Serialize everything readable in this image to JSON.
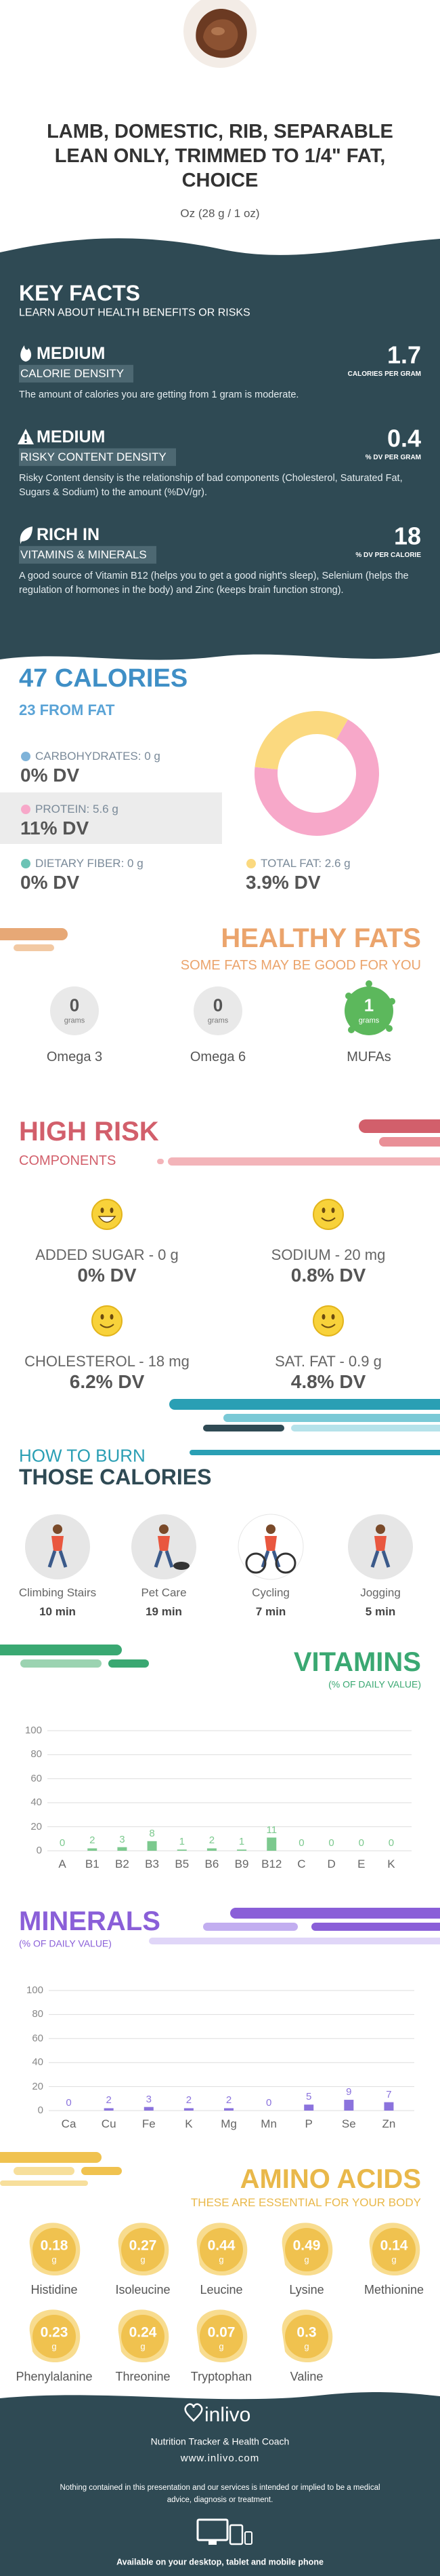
{
  "header": {
    "title": "LAMB, DOMESTIC, RIB, SEPARABLE LEAN ONLY, TRIMMED TO 1/4\" FAT, CHOICE",
    "serving": "Oz (28 g / 1 oz)"
  },
  "key_facts": {
    "title": "KEY FACTS",
    "subtitle": "LEARN ABOUT HEALTH BENEFITS OR RISKS",
    "items": [
      {
        "level": "MEDIUM",
        "name": "CALORIE DENSITY",
        "value": "1.7",
        "unit": "CALORIES PER GRAM",
        "text": "The amount of calories you are getting from 1 gram is moderate."
      },
      {
        "level": "MEDIUM",
        "name": "RISKY CONTENT DENSITY",
        "value": "0.4",
        "unit": "% DV PER GRAM",
        "text": "Risky Content density is the relationship of bad components (Cholesterol, Saturated Fat, Sugars & Sodium) to the amount (%DV/gr)."
      },
      {
        "level": "RICH  IN",
        "name": "VITAMINS & MINERALS",
        "value": "18",
        "unit": "% DV PER CALORIE",
        "text": "A good source of Vitamin B12 (helps you to get a good night's sleep), Selenium (helps the regulation of hormones in the body) and Zinc (keeps brain function strong)."
      }
    ]
  },
  "calories": {
    "title": "47 CALORIES",
    "subtitle": "23 FROM FAT",
    "nutrients": [
      {
        "label": "CARBOHYDRATES: 0 g",
        "value": 0,
        "dv": "0% DV",
        "color": "#7fb3d9"
      },
      {
        "label": "PROTEIN: 5.6 g",
        "value": 5.6,
        "dv": "11% DV",
        "color": "#f7a8c9"
      },
      {
        "label": "DIETARY FIBER: 0 g",
        "value": 0,
        "dv": "0% DV",
        "color": "#6cc3b5"
      },
      {
        "label": "TOTAL FAT: 2.6 g",
        "value": 2.6,
        "dv": "3.9% DV",
        "color": "#fbd97f"
      }
    ]
  },
  "healthy_fats": {
    "title": "HEALTHY FATS",
    "subtitle": "SOME FATS MAY BE GOOD FOR YOU",
    "items": [
      {
        "amount": "0",
        "unit": "grams",
        "name": "Omega 3"
      },
      {
        "amount": "0",
        "unit": "grams",
        "name": "Omega 6"
      },
      {
        "amount": "1",
        "unit": "grams",
        "name": "MUFAs"
      }
    ]
  },
  "high_risk": {
    "title": "HIGH RISK",
    "subtitle": "COMPONENTS",
    "items": [
      {
        "label": "ADDED SUGAR - 0 g",
        "dv": "0% DV"
      },
      {
        "label": "SODIUM - 20 mg",
        "dv": "0.8% DV"
      },
      {
        "label": "CHOLESTEROL - 18 mg",
        "dv": "6.2% DV"
      },
      {
        "label": "SAT. FAT - 0.9 g",
        "dv": "4.8% DV"
      }
    ]
  },
  "burn": {
    "title": "HOW TO BURN",
    "subtitle": "THOSE CALORIES",
    "activities": [
      {
        "name": "Climbing Stairs",
        "time": "10 min"
      },
      {
        "name": "Pet Care",
        "time": "19 min"
      },
      {
        "name": "Cycling",
        "time": "7 min"
      },
      {
        "name": "Jogging",
        "time": "5 min"
      }
    ]
  },
  "vitamins": {
    "title": "VITAMINS",
    "subtitle": "(% OF DAILY VALUE)",
    "chart": {
      "type": "bar",
      "categories": [
        "A",
        "B1",
        "B2",
        "B3",
        "B5",
        "B6",
        "B9",
        "B12",
        "C",
        "D",
        "E",
        "K"
      ],
      "values": [
        0,
        2,
        3,
        8,
        1,
        2,
        1,
        11,
        0,
        0,
        0,
        0
      ],
      "color": "#7cc98e",
      "ylim": [
        0,
        100
      ],
      "yticks": [
        0,
        20,
        40,
        60,
        80,
        100
      ],
      "grid": true
    }
  },
  "minerals": {
    "title": "MINERALS",
    "subtitle": "(% OF DAILY VALUE)",
    "chart": {
      "type": "bar",
      "categories": [
        "Ca",
        "Cu",
        "Fe",
        "K",
        "Mg",
        "Mn",
        "P",
        "Se",
        "Zn"
      ],
      "values": [
        0,
        2,
        3,
        2,
        2,
        0,
        5,
        9,
        7
      ],
      "color": "#8b73dd",
      "ylim": [
        0,
        100
      ],
      "yticks": [
        0,
        20,
        40,
        60,
        80,
        100
      ],
      "grid": true
    }
  },
  "amino_acids": {
    "title": "AMINO ACIDS",
    "subtitle": "THESE ARE ESSENTIAL FOR YOUR BODY",
    "items": [
      {
        "amount": "0.18",
        "unit": "g",
        "name": "Histidine"
      },
      {
        "amount": "0.27",
        "unit": "g",
        "name": "Isoleucine"
      },
      {
        "amount": "0.44",
        "unit": "g",
        "name": "Leucine"
      },
      {
        "amount": "0.49",
        "unit": "g",
        "name": "Lysine"
      },
      {
        "amount": "0.14",
        "unit": "g",
        "name": "Methionine"
      },
      {
        "amount": "0.23",
        "unit": "g",
        "name": "Phenylalanine"
      },
      {
        "amount": "0.24",
        "unit": "g",
        "name": "Threonine"
      },
      {
        "amount": "0.07",
        "unit": "g",
        "name": "Tryptophan"
      },
      {
        "amount": "0.3",
        "unit": "g",
        "name": "Valine"
      }
    ]
  },
  "footer": {
    "brand": "inlivo",
    "tagline": "Nutrition Tracker & Health Coach",
    "url": "www.inlivo.com",
    "disclaimer": "Nothing contained in this presentation and our services is intended or implied to be a medical advice, diagnosis or treatment.",
    "platforms": "Available on your desktop, tablet and mobile phone"
  }
}
